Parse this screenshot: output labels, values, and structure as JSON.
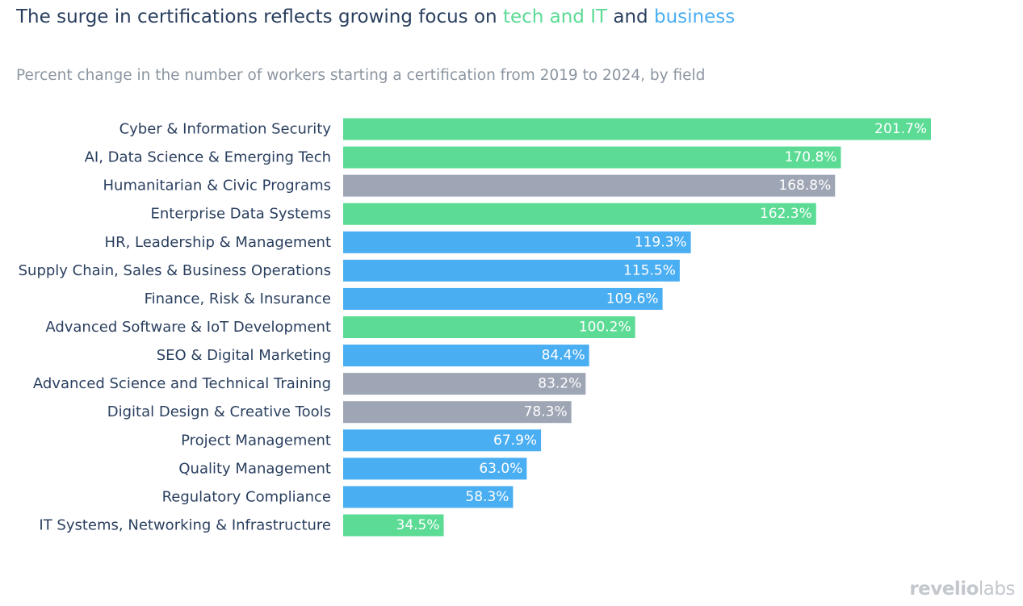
{
  "header": {
    "title_prefix": "The surge in certifications reflects growing focus on ",
    "title_tech": "tech and IT",
    "title_mid": " and ",
    "title_business": "business",
    "subtitle": "Percent change in the number of workers starting a certification from 2019 to 2024, by field"
  },
  "colors": {
    "tech": "#5cdb95",
    "business": "#4aaef2",
    "other": "#9ea5b4",
    "title": "#2a3f5f",
    "subtitle": "#8b95a0"
  },
  "chart_data": {
    "type": "bar",
    "orientation": "horizontal",
    "title": "The surge in certifications reflects growing focus on tech and IT and business",
    "subtitle": "Percent change in the number of workers starting a certification from 2019 to 2024, by field",
    "xlabel": "",
    "ylabel": "",
    "xlim": [
      0,
      201.7
    ],
    "grid": false,
    "legend": "none",
    "value_suffix": "%",
    "categories": [
      "Cyber & Information Security",
      "AI, Data Science & Emerging Tech",
      "Humanitarian & Civic Programs",
      "Enterprise Data Systems",
      "HR, Leadership & Management",
      "Supply Chain, Sales & Business Operations",
      "Finance, Risk & Insurance",
      "Advanced Software & IoT Development",
      "SEO & Digital Marketing",
      "Advanced Science and Technical Training",
      "Digital Design & Creative Tools",
      "Project Management",
      "Quality Management",
      "Regulatory Compliance",
      "IT Systems, Networking & Infrastructure"
    ],
    "values": [
      201.7,
      170.8,
      168.8,
      162.3,
      119.3,
      115.5,
      109.6,
      100.2,
      84.4,
      83.2,
      78.3,
      67.9,
      63.0,
      58.3,
      34.5
    ],
    "value_labels": [
      "201.7%",
      "170.8%",
      "168.8%",
      "162.3%",
      "119.3%",
      "115.5%",
      "109.6%",
      "100.2%",
      "84.4%",
      "83.2%",
      "78.3%",
      "67.9%",
      "63.0%",
      "58.3%",
      "34.5%"
    ],
    "groups": [
      "tech",
      "tech",
      "other",
      "tech",
      "business",
      "business",
      "business",
      "tech",
      "business",
      "other",
      "other",
      "business",
      "business",
      "business",
      "tech"
    ]
  },
  "branding": {
    "logo_left": "revelio",
    "logo_right": "labs"
  }
}
